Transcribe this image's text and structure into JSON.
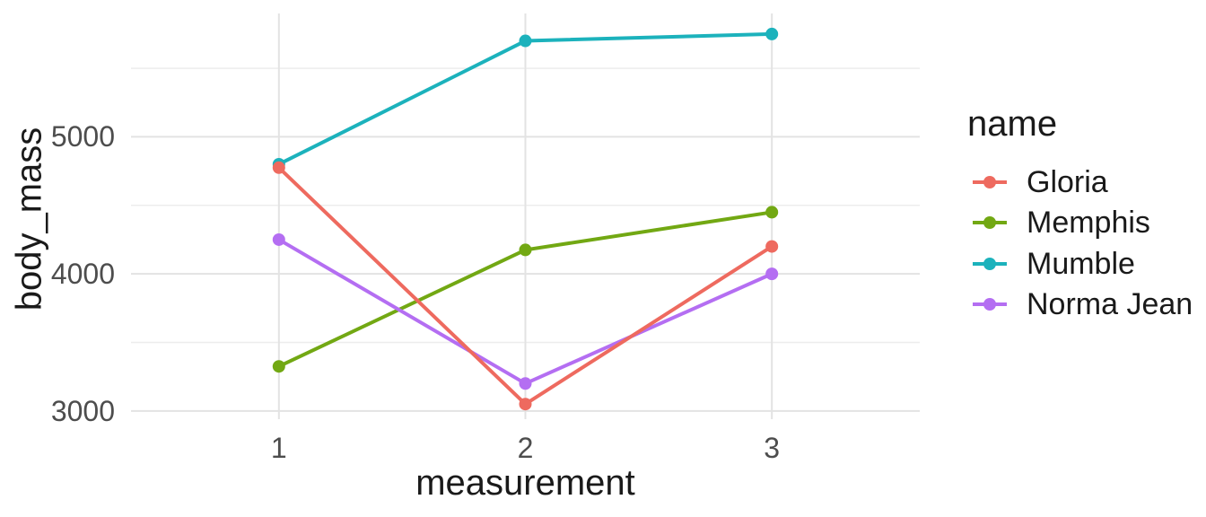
{
  "chart_data": {
    "type": "line",
    "title": "",
    "xlabel": "measurement",
    "ylabel": "body_mass",
    "x": [
      1,
      2,
      3
    ],
    "x_tick_labels": [
      "1",
      "2",
      "3"
    ],
    "y_tick_labels": [
      "3000",
      "4000",
      "5000"
    ],
    "y_ticks_major": [
      3000,
      4000,
      5000
    ],
    "y_ticks_minor": [
      3500,
      4500,
      5500
    ],
    "xlim": [
      0.4,
      3.6
    ],
    "ylim": [
      2940,
      5900
    ],
    "grid": "horizontal major+minor, vertical at x breaks",
    "legend_title": "name",
    "legend_position": "right",
    "series": [
      {
        "name": "Gloria",
        "color": "#ee6a5f",
        "values": [
          4775,
          3050,
          4200
        ]
      },
      {
        "name": "Memphis",
        "color": "#72a813",
        "values": [
          3325,
          4175,
          4450
        ]
      },
      {
        "name": "Mumble",
        "color": "#1cb2bc",
        "values": [
          4800,
          5700,
          5750
        ]
      },
      {
        "name": "Norma Jean",
        "color": "#b46ef2",
        "values": [
          4250,
          3200,
          4000
        ]
      }
    ]
  },
  "colors": {
    "background": "#ffffff",
    "grid_major": "#e3e3e3",
    "grid_minor": "#ededed",
    "tick_text": "#4d4d4d",
    "title_text": "#1a1a1a"
  }
}
